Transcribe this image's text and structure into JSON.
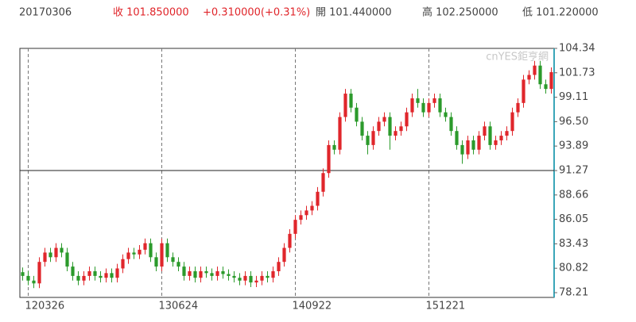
{
  "chart_data": {
    "type": "candlestick",
    "header": {
      "date": "20170306",
      "close": "收 101.850000",
      "change": "+0.310000(+0.31%)",
      "open": "開 101.440000",
      "high": "高 102.250000",
      "low": "低 101.220000"
    },
    "watermark": "cnYES鉅亨網",
    "categories": [
      null,
      "120326",
      null,
      null,
      null,
      null,
      null,
      null,
      null,
      null,
      null,
      null,
      null,
      null,
      null,
      null,
      null,
      null,
      null,
      null,
      null,
      null,
      null,
      null,
      null,
      "130624",
      null,
      null,
      null,
      null,
      null,
      null,
      null,
      null,
      null,
      null,
      null,
      null,
      null,
      null,
      null,
      null,
      null,
      null,
      null,
      null,
      null,
      null,
      null,
      "140922",
      null,
      null,
      null,
      null,
      null,
      null,
      null,
      null,
      null,
      null,
      null,
      null,
      null,
      null,
      null,
      null,
      null,
      null,
      null,
      null,
      null,
      null,
      null,
      "151221",
      null,
      null,
      null,
      null,
      null,
      null,
      null,
      null,
      null,
      null,
      null,
      null,
      null,
      null,
      null,
      null,
      null,
      null,
      null,
      null,
      null,
      null
    ],
    "open": [
      80.4,
      80.0,
      79.5,
      79.2,
      81.5,
      82.5,
      82.0,
      83.0,
      82.5,
      81.0,
      80.0,
      79.5,
      80.0,
      80.5,
      80.0,
      79.8,
      80.3,
      79.8,
      80.8,
      81.8,
      82.5,
      82.3,
      82.8,
      83.5,
      82.0,
      81.0,
      83.5,
      82.0,
      81.5,
      81.0,
      80.0,
      80.5,
      79.8,
      80.5,
      80.3,
      80.0,
      80.5,
      80.2,
      80.0,
      79.8,
      79.5,
      80.0,
      79.3,
      79.5,
      80.0,
      79.8,
      80.5,
      81.5,
      83.0,
      84.5,
      86.0,
      86.5,
      87.0,
      87.5,
      89.0,
      91.0,
      94.0,
      93.5,
      97.0,
      99.5,
      98.0,
      96.5,
      95.0,
      94.0,
      95.5,
      96.5,
      97.0,
      95.0,
      95.5,
      96.0,
      97.5,
      99.0,
      98.5,
      97.5,
      98.5,
      99.0,
      97.5,
      97.0,
      95.5,
      94.0,
      93.0,
      94.5,
      93.5,
      95.0,
      96.0,
      94.0,
      94.5,
      95.0,
      95.5,
      97.5,
      98.5,
      101.0,
      101.5,
      102.5,
      100.5,
      100.0
    ],
    "high": [
      80.9,
      80.5,
      80.0,
      82.0,
      83.0,
      83.0,
      83.5,
      83.5,
      83.0,
      81.5,
      80.5,
      80.5,
      81.0,
      81.0,
      80.5,
      80.8,
      80.8,
      81.3,
      82.3,
      83.0,
      83.0,
      83.3,
      84.0,
      84.0,
      82.5,
      84.0,
      84.0,
      82.5,
      82.0,
      81.5,
      81.0,
      81.0,
      81.0,
      81.0,
      80.8,
      81.0,
      81.0,
      80.7,
      80.5,
      80.3,
      80.5,
      80.5,
      80.0,
      80.5,
      80.5,
      81.0,
      82.0,
      83.5,
      85.0,
      86.5,
      87.0,
      87.5,
      88.0,
      89.5,
      91.5,
      94.5,
      94.5,
      97.5,
      100.0,
      100.0,
      98.5,
      97.0,
      95.5,
      96.0,
      97.0,
      97.5,
      97.5,
      96.0,
      96.5,
      98.0,
      99.5,
      100.0,
      99.0,
      99.0,
      99.5,
      99.5,
      98.0,
      97.5,
      96.0,
      94.5,
      95.0,
      95.0,
      95.5,
      96.5,
      96.5,
      95.0,
      95.5,
      96.0,
      98.0,
      99.0,
      101.5,
      102.0,
      103.0,
      103.0,
      101.0,
      102.3
    ],
    "low": [
      79.5,
      79.0,
      78.7,
      78.7,
      81.0,
      81.5,
      81.5,
      82.0,
      80.5,
      79.5,
      79.0,
      79.0,
      79.5,
      79.5,
      79.3,
      79.3,
      79.3,
      79.3,
      80.3,
      81.3,
      81.8,
      81.8,
      82.3,
      81.5,
      80.5,
      80.5,
      81.5,
      81.0,
      80.5,
      79.5,
      79.5,
      79.3,
      79.3,
      79.8,
      79.5,
      79.5,
      79.7,
      79.5,
      79.3,
      79.0,
      79.0,
      78.8,
      78.8,
      79.0,
      79.3,
      79.3,
      80.0,
      81.0,
      82.5,
      84.0,
      85.5,
      86.0,
      86.5,
      87.0,
      88.5,
      90.5,
      93.0,
      93.0,
      96.5,
      97.5,
      96.0,
      94.5,
      93.0,
      93.5,
      95.0,
      96.0,
      93.5,
      94.5,
      95.0,
      95.5,
      97.0,
      98.0,
      97.0,
      97.0,
      98.0,
      97.0,
      96.5,
      95.0,
      93.5,
      92.0,
      92.5,
      93.0,
      93.0,
      94.5,
      93.5,
      93.5,
      94.0,
      94.5,
      95.0,
      97.0,
      98.0,
      100.5,
      101.0,
      100.0,
      99.5,
      99.5
    ],
    "close": [
      80.0,
      79.5,
      79.2,
      81.5,
      82.5,
      82.0,
      83.0,
      82.5,
      81.0,
      80.0,
      79.5,
      80.0,
      80.5,
      80.0,
      79.8,
      80.3,
      79.8,
      80.8,
      81.8,
      82.5,
      82.3,
      82.8,
      83.5,
      82.0,
      81.0,
      83.5,
      82.0,
      81.5,
      81.0,
      80.0,
      80.5,
      79.8,
      80.5,
      80.3,
      80.0,
      80.5,
      80.2,
      80.0,
      79.8,
      79.5,
      80.0,
      79.3,
      79.5,
      80.0,
      79.8,
      80.5,
      81.5,
      83.0,
      84.5,
      86.0,
      86.5,
      87.0,
      87.5,
      89.0,
      91.0,
      94.0,
      93.5,
      97.0,
      99.5,
      98.0,
      96.5,
      95.0,
      94.0,
      95.5,
      96.5,
      97.0,
      95.0,
      95.5,
      96.0,
      97.5,
      99.0,
      98.5,
      97.5,
      98.5,
      99.0,
      97.5,
      97.0,
      95.5,
      94.0,
      93.0,
      94.5,
      93.5,
      95.0,
      96.0,
      94.0,
      94.5,
      95.0,
      95.5,
      97.5,
      98.5,
      101.0,
      101.5,
      102.5,
      100.5,
      100.0,
      101.8
    ],
    "up_color": "#e0262b",
    "down_color": "#2b9a2b",
    "ylim": [
      77.7,
      104.34
    ],
    "yticks": [
      78.21,
      80.82,
      83.43,
      86.05,
      88.66,
      91.27,
      93.89,
      {
        "value": 96.5,
        "label": "96.50"
      },
      99.11,
      101.73,
      104.34
    ],
    "hline": 91.27
  }
}
